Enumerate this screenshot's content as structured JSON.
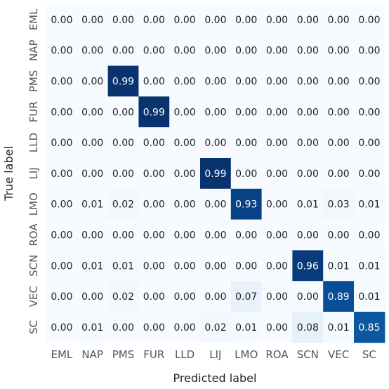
{
  "chart_data": {
    "type": "heatmap",
    "title": "",
    "xlabel": "Predicted label",
    "ylabel": "True label",
    "x_categories": [
      "EML",
      "NAP",
      "PMS",
      "FUR",
      "LLD",
      "LIJ",
      "LMO",
      "ROA",
      "SCN",
      "VEC",
      "SC"
    ],
    "y_categories": [
      "EML",
      "NAP",
      "PMS",
      "FUR",
      "LLD",
      "LIJ",
      "LMO",
      "ROA",
      "SCN",
      "VEC",
      "SC"
    ],
    "value_range": [
      0,
      1
    ],
    "colormap": "Blues",
    "colorbar": false,
    "values": [
      [
        0.0,
        0.0,
        0.0,
        0.0,
        0.0,
        0.0,
        0.0,
        0.0,
        0.0,
        0.0,
        0.0
      ],
      [
        0.0,
        0.0,
        0.0,
        0.0,
        0.0,
        0.0,
        0.0,
        0.0,
        0.0,
        0.0,
        0.0
      ],
      [
        0.0,
        0.0,
        0.99,
        0.0,
        0.0,
        0.0,
        0.0,
        0.0,
        0.0,
        0.0,
        0.0
      ],
      [
        0.0,
        0.0,
        0.0,
        0.99,
        0.0,
        0.0,
        0.0,
        0.0,
        0.0,
        0.0,
        0.0
      ],
      [
        0.0,
        0.0,
        0.0,
        0.0,
        0.0,
        0.0,
        0.0,
        0.0,
        0.0,
        0.0,
        0.0
      ],
      [
        0.0,
        0.0,
        0.0,
        0.0,
        0.0,
        0.99,
        0.0,
        0.0,
        0.0,
        0.0,
        0.0
      ],
      [
        0.0,
        0.01,
        0.02,
        0.0,
        0.0,
        0.0,
        0.93,
        0.0,
        0.01,
        0.03,
        0.01
      ],
      [
        0.0,
        0.0,
        0.0,
        0.0,
        0.0,
        0.0,
        0.0,
        0.0,
        0.0,
        0.0,
        0.0
      ],
      [
        0.0,
        0.01,
        0.01,
        0.0,
        0.0,
        0.0,
        0.0,
        0.0,
        0.96,
        0.01,
        0.01
      ],
      [
        0.0,
        0.0,
        0.02,
        0.0,
        0.0,
        0.0,
        0.07,
        0.0,
        0.0,
        0.89,
        0.01
      ],
      [
        0.0,
        0.01,
        0.0,
        0.0,
        0.0,
        0.02,
        0.01,
        0.0,
        0.08,
        0.01,
        0.85
      ]
    ]
  }
}
